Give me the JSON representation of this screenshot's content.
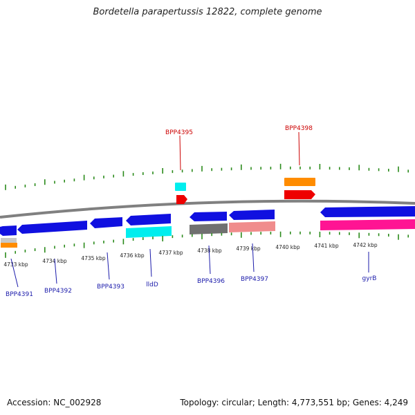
{
  "title": "Bordetella parapertussis 12822, complete genome",
  "footer": {
    "accession": "Accession: NC_002928",
    "summary": "Topology: circular; Length: 4,773,551 bp; Genes: 4,249"
  },
  "colors": {
    "cds_blue": "#1010e0",
    "cyan": "#00eeee",
    "red": "#ee0000",
    "orange": "#ff8c00",
    "gray": "#707070",
    "salmon": "#f08c8c",
    "magenta": "#ff1493",
    "silver": "#c8c8c8",
    "tick_green": "#2a8a1a",
    "label_blue": "#1a1aaa",
    "label_red": "#cc0000"
  },
  "ticks": [
    "4733 kbp",
    "4734 kbp",
    "4735 kbp",
    "4736 kbp",
    "4737 kbp",
    "4738 kbp",
    "4739 kbp",
    "4740 kbp",
    "4741 kbp",
    "4742 kbp"
  ],
  "labels": {
    "top": [
      "BPP4395",
      "BPP4398"
    ],
    "bottom": [
      "BPP4391",
      "BPP4392",
      "BPP4393",
      "lldD",
      "BPP4396",
      "BPP4397",
      "gyrB"
    ]
  }
}
